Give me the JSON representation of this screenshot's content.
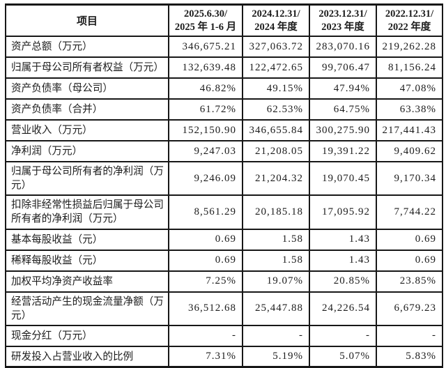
{
  "colors": {
    "ink": "#1c1c1c",
    "border": "#171717",
    "background": "#ffffff"
  },
  "table": {
    "header": {
      "item_label": "项目",
      "columns": [
        {
          "line1": "2025.6.30/",
          "line2": "2025 年 1-6 月"
        },
        {
          "line1": "2024.12.31/",
          "line2": "2024 年度"
        },
        {
          "line1": "2023.12.31/",
          "line2": "2023 年度"
        },
        {
          "line1": "2022.12.31/",
          "line2": "2022 年度"
        }
      ]
    },
    "rows": [
      {
        "label": "资产总额（万元）",
        "values": [
          "346,675.21",
          "327,063.72",
          "283,070.16",
          "219,262.28"
        ]
      },
      {
        "label": "归属于母公司所有者权益（万元）",
        "values": [
          "132,639.48",
          "122,472.65",
          "99,706.47",
          "81,156.24"
        ]
      },
      {
        "label": "资产负债率（母公司）",
        "values": [
          "46.82%",
          "49.15%",
          "47.94%",
          "47.08%"
        ]
      },
      {
        "label": "资产负债率（合并）",
        "values": [
          "61.72%",
          "62.53%",
          "64.75%",
          "63.38%"
        ]
      },
      {
        "label": "营业收入（万元）",
        "values": [
          "152,150.90",
          "346,655.84",
          "300,275.90",
          "217,441.43"
        ]
      },
      {
        "label": "净利润（万元）",
        "values": [
          "9,247.03",
          "21,208.05",
          "19,391.22",
          "9,409.62"
        ]
      },
      {
        "label": "归属于母公司所有者的净利润（万元）",
        "values": [
          "9,246.09",
          "21,204.32",
          "19,070.45",
          "9,170.34"
        ]
      },
      {
        "label": "扣除非经常性损益后归属于母公司所有者的净利润（万元）",
        "values": [
          "8,561.29",
          "20,185.18",
          "17,095.92",
          "7,744.22"
        ]
      },
      {
        "label": "基本每股收益（元）",
        "values": [
          "0.69",
          "1.58",
          "1.43",
          "0.69"
        ]
      },
      {
        "label": "稀释每股收益（元）",
        "values": [
          "0.69",
          "1.58",
          "1.43",
          "0.69"
        ]
      },
      {
        "label": "加权平均净资产收益率",
        "values": [
          "7.25%",
          "19.07%",
          "20.85%",
          "23.85%"
        ]
      },
      {
        "label": "经营活动产生的现金流量净额（万元）",
        "values": [
          "36,512.68",
          "25,447.88",
          "24,226.54",
          "6,679.23"
        ]
      },
      {
        "label": "现金分红（万元）",
        "values": [
          "-",
          "-",
          "-",
          "-"
        ]
      },
      {
        "label": "研发投入占营业收入的比例",
        "values": [
          "7.31%",
          "5.19%",
          "5.07%",
          "5.83%"
        ]
      }
    ]
  }
}
